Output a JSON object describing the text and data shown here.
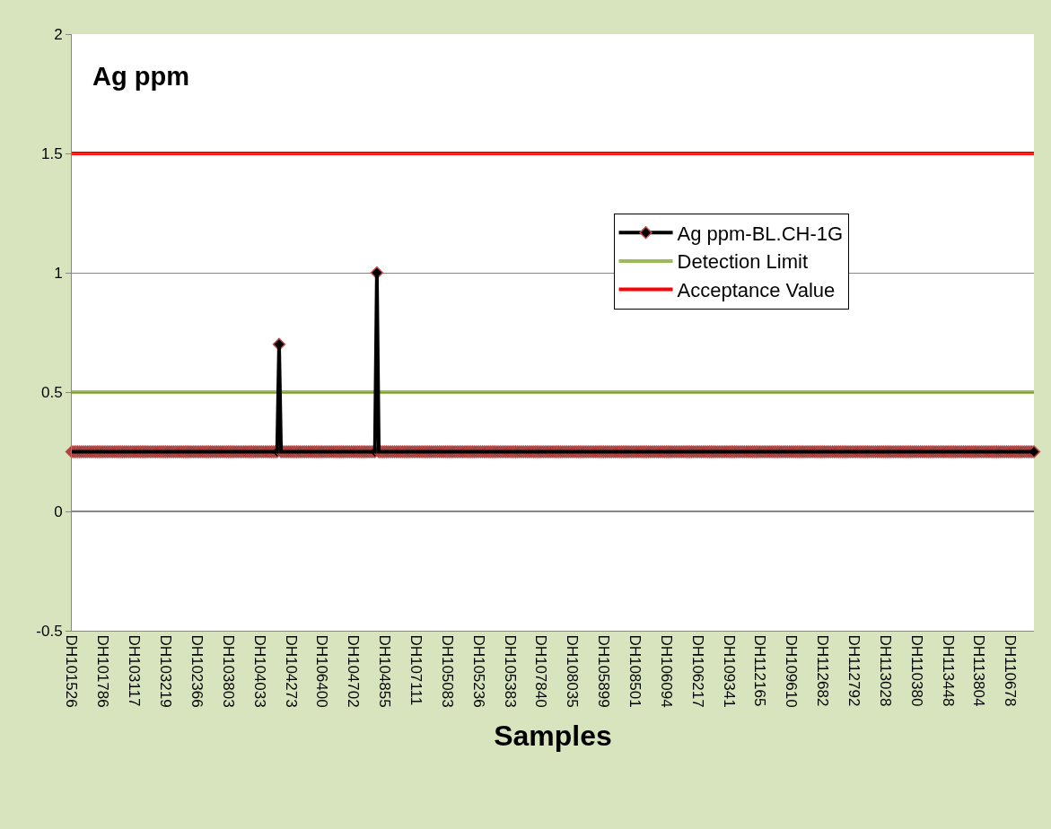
{
  "chart_data": {
    "type": "line",
    "title": "Ag ppm",
    "xlabel": "Samples",
    "categories": [
      "DH101526",
      null,
      null,
      null,
      null,
      null,
      null,
      null,
      null,
      null,
      null,
      null,
      null,
      null,
      null,
      null,
      "DH101786",
      null,
      null,
      null,
      null,
      null,
      null,
      null,
      null,
      null,
      null,
      null,
      null,
      null,
      null,
      null,
      "DH103117",
      null,
      null,
      null,
      null,
      null,
      null,
      null,
      null,
      null,
      null,
      null,
      null,
      null,
      null,
      null,
      "DH103219",
      null,
      null,
      null,
      null,
      null,
      null,
      null,
      null,
      null,
      null,
      null,
      null,
      null,
      null,
      null,
      "DH102366",
      null,
      null,
      null,
      null,
      null,
      null,
      null,
      null,
      null,
      null,
      null,
      null,
      null,
      null,
      null,
      "DH103803",
      null,
      null,
      null,
      null,
      null,
      null,
      null,
      null,
      null,
      null,
      null,
      null,
      null,
      null,
      null,
      "DH104033",
      null,
      null,
      null,
      null,
      null,
      null,
      null,
      null,
      null,
      null,
      null,
      null,
      null,
      null,
      null,
      "DH104273",
      null,
      null,
      null,
      null,
      null,
      null,
      null,
      null,
      null,
      null,
      null,
      null,
      null,
      null,
      null,
      "DH106400",
      null,
      null,
      null,
      null,
      null,
      null,
      null,
      null,
      null,
      null,
      null,
      null,
      null,
      null,
      null,
      "DH104702",
      null,
      null,
      null,
      null,
      null,
      null,
      null,
      null,
      null,
      null,
      null,
      null,
      null,
      null,
      null,
      "DH104855",
      null,
      null,
      null,
      null,
      null,
      null,
      null,
      null,
      null,
      null,
      null,
      null,
      null,
      null,
      null,
      "DH107111",
      null,
      null,
      null,
      null,
      null,
      null,
      null,
      null,
      null,
      null,
      null,
      null,
      null,
      null,
      null,
      "DH105083",
      null,
      null,
      null,
      null,
      null,
      null,
      null,
      null,
      null,
      null,
      null,
      null,
      null,
      null,
      null,
      "DH105236",
      null,
      null,
      null,
      null,
      null,
      null,
      null,
      null,
      null,
      null,
      null,
      null,
      null,
      null,
      null,
      "DH105383",
      null,
      null,
      null,
      null,
      null,
      null,
      null,
      null,
      null,
      null,
      null,
      null,
      null,
      null,
      null,
      "DH107840",
      null,
      null,
      null,
      null,
      null,
      null,
      null,
      null,
      null,
      null,
      null,
      null,
      null,
      null,
      null,
      "DH108035",
      null,
      null,
      null,
      null,
      null,
      null,
      null,
      null,
      null,
      null,
      null,
      null,
      null,
      null,
      null,
      "DH105899",
      null,
      null,
      null,
      null,
      null,
      null,
      null,
      null,
      null,
      null,
      null,
      null,
      null,
      null,
      null,
      "DH108501",
      null,
      null,
      null,
      null,
      null,
      null,
      null,
      null,
      null,
      null,
      null,
      null,
      null,
      null,
      null,
      "DH106094",
      null,
      null,
      null,
      null,
      null,
      null,
      null,
      null,
      null,
      null,
      null,
      null,
      null,
      null,
      null,
      "DH106217",
      null,
      null,
      null,
      null,
      null,
      null,
      null,
      null,
      null,
      null,
      null,
      null,
      null,
      null,
      null,
      "DH109341",
      null,
      null,
      null,
      null,
      null,
      null,
      null,
      null,
      null,
      null,
      null,
      null,
      null,
      null,
      null,
      "DH112165",
      null,
      null,
      null,
      null,
      null,
      null,
      null,
      null,
      null,
      null,
      null,
      null,
      null,
      null,
      null,
      "DH109610",
      null,
      null,
      null,
      null,
      null,
      null,
      null,
      null,
      null,
      null,
      null,
      null,
      null,
      null,
      null,
      "DH112682",
      null,
      null,
      null,
      null,
      null,
      null,
      null,
      null,
      null,
      null,
      null,
      null,
      null,
      null,
      null,
      "DH112792",
      null,
      null,
      null,
      null,
      null,
      null,
      null,
      null,
      null,
      null,
      null,
      null,
      null,
      null,
      null,
      "DH113028",
      null,
      null,
      null,
      null,
      null,
      null,
      null,
      null,
      null,
      null,
      null,
      null,
      null,
      null,
      null,
      "DH110380",
      null,
      null,
      null,
      null,
      null,
      null,
      null,
      null,
      null,
      null,
      null,
      null,
      null,
      null,
      null,
      "DH113448",
      null,
      null,
      null,
      null,
      null,
      null,
      null,
      null,
      null,
      null,
      null,
      null,
      null,
      null,
      null,
      "DH113804",
      null,
      null,
      null,
      null,
      null,
      null,
      null,
      null,
      null,
      null,
      null,
      null,
      null,
      null,
      null,
      "DH110678",
      null,
      null,
      null,
      null,
      null,
      null,
      null,
      null,
      null,
      null,
      null,
      null
    ],
    "series": [
      {
        "name": "Ag ppm-BL.CH-1G",
        "color": "#000000",
        "values": [
          0.25,
          0.25,
          0.25,
          0.25,
          0.25,
          0.25,
          0.25,
          0.25,
          0.25,
          0.25,
          0.25,
          0.25,
          0.25,
          0.25,
          0.25,
          0.25,
          0.25,
          0.25,
          0.25,
          0.25,
          0.25,
          0.25,
          0.25,
          0.25,
          0.25,
          0.25,
          0.25,
          0.25,
          0.25,
          0.25,
          0.25,
          0.25,
          0.25,
          0.25,
          0.25,
          0.25,
          0.25,
          0.25,
          0.25,
          0.25,
          0.25,
          0.25,
          0.25,
          0.25,
          0.25,
          0.25,
          0.25,
          0.25,
          0.25,
          0.25,
          0.25,
          0.25,
          0.25,
          0.25,
          0.25,
          0.25,
          0.25,
          0.25,
          0.25,
          0.25,
          0.25,
          0.25,
          0.25,
          0.25,
          0.25,
          0.25,
          0.25,
          0.25,
          0.25,
          0.25,
          0.25,
          0.25,
          0.25,
          0.25,
          0.25,
          0.25,
          0.25,
          0.25,
          0.25,
          0.25,
          0.25,
          0.25,
          0.25,
          0.25,
          0.25,
          0.25,
          0.25,
          0.25,
          0.25,
          0.25,
          0.25,
          0.25,
          0.25,
          0.25,
          0.25,
          0.25,
          0.25,
          0.25,
          0.25,
          0.25,
          0.25,
          0.25,
          0.25,
          0.25,
          0.25,
          0.25,
          0.7,
          0.25,
          0.25,
          0.25,
          0.25,
          0.25,
          0.25,
          0.25,
          0.25,
          0.25,
          0.25,
          0.25,
          0.25,
          0.25,
          0.25,
          0.25,
          0.25,
          0.25,
          0.25,
          0.25,
          0.25,
          0.25,
          0.25,
          0.25,
          0.25,
          0.25,
          0.25,
          0.25,
          0.25,
          0.25,
          0.25,
          0.25,
          0.25,
          0.25,
          0.25,
          0.25,
          0.25,
          0.25,
          0.25,
          0.25,
          0.25,
          0.25,
          0.25,
          0.25,
          0.25,
          0.25,
          0.25,
          0.25,
          0.25,
          0.25,
          1,
          0.25,
          0.25,
          0.25,
          0.25,
          0.25,
          0.25,
          0.25,
          0.25,
          0.25,
          0.25,
          0.25,
          0.25,
          0.25,
          0.25,
          0.25,
          0.25,
          0.25,
          0.25,
          0.25,
          0.25,
          0.25,
          0.25,
          0.25,
          0.25,
          0.25,
          0.25,
          0.25,
          0.25,
          0.25,
          0.25,
          0.25,
          0.25,
          0.25,
          0.25,
          0.25,
          0.25,
          0.25,
          0.25,
          0.25,
          0.25,
          0.25,
          0.25,
          0.25,
          0.25,
          0.25,
          0.25,
          0.25,
          0.25,
          0.25,
          0.25,
          0.25,
          0.25,
          0.25,
          0.25,
          0.25,
          0.25,
          0.25,
          0.25,
          0.25,
          0.25,
          0.25,
          0.25,
          0.25,
          0.25,
          0.25,
          0.25,
          0.25,
          0.25,
          0.25,
          0.25,
          0.25,
          0.25,
          0.25,
          0.25,
          0.25,
          0.25,
          0.25,
          0.25,
          0.25,
          0.25,
          0.25,
          0.25,
          0.25,
          0.25,
          0.25,
          0.25,
          0.25,
          0.25,
          0.25,
          0.25,
          0.25,
          0.25,
          0.25,
          0.25,
          0.25,
          0.25,
          0.25,
          0.25,
          0.25,
          0.25,
          0.25,
          0.25,
          0.25,
          0.25,
          0.25,
          0.25,
          0.25,
          0.25,
          0.25,
          0.25,
          0.25,
          0.25,
          0.25,
          0.25,
          0.25,
          0.25,
          0.25,
          0.25,
          0.25,
          0.25,
          0.25,
          0.25,
          0.25,
          0.25,
          0.25,
          0.25,
          0.25,
          0.25,
          0.25,
          0.25,
          0.25,
          0.25,
          0.25,
          0.25,
          0.25,
          0.25,
          0.25,
          0.25,
          0.25,
          0.25,
          0.25,
          0.25,
          0.25,
          0.25,
          0.25,
          0.25,
          0.25,
          0.25,
          0.25,
          0.25,
          0.25,
          0.25,
          0.25,
          0.25,
          0.25,
          0.25,
          0.25,
          0.25,
          0.25,
          0.25,
          0.25,
          0.25,
          0.25,
          0.25,
          0.25,
          0.25,
          0.25,
          0.25,
          0.25,
          0.25,
          0.25,
          0.25,
          0.25,
          0.25,
          0.25,
          0.25,
          0.25,
          0.25,
          0.25,
          0.25,
          0.25,
          0.25,
          0.25,
          0.25,
          0.25,
          0.25,
          0.25,
          0.25,
          0.25,
          0.25,
          0.25,
          0.25,
          0.25,
          0.25,
          0.25,
          0.25,
          0.25,
          0.25,
          0.25,
          0.25,
          0.25,
          0.25,
          0.25,
          0.25,
          0.25,
          0.25,
          0.25,
          0.25,
          0.25,
          0.25,
          0.25,
          0.25,
          0.25,
          0.25,
          0.25,
          0.25,
          0.25,
          0.25,
          0.25,
          0.25,
          0.25,
          0.25,
          0.25,
          0.25,
          0.25,
          0.25,
          0.25,
          0.25,
          0.25,
          0.25,
          0.25,
          0.25,
          0.25,
          0.25,
          0.25,
          0.25,
          0.25,
          0.25,
          0.25,
          0.25,
          0.25,
          0.25,
          0.25,
          0.25,
          0.25,
          0.25,
          0.25,
          0.25,
          0.25,
          0.25,
          0.25,
          0.25,
          0.25,
          0.25,
          0.25,
          0.25,
          0.25,
          0.25,
          0.25,
          0.25,
          0.25,
          0.25,
          0.25,
          0.25,
          0.25,
          0.25,
          0.25,
          0.25,
          0.25,
          0.25,
          0.25,
          0.25,
          0.25,
          0.25,
          0.25,
          0.25,
          0.25,
          0.25,
          0.25,
          0.25,
          0.25,
          0.25,
          0.25,
          0.25,
          0.25,
          0.25,
          0.25,
          0.25,
          0.25,
          0.25,
          0.25,
          0.25,
          0.25,
          0.25,
          0.25,
          0.25,
          0.25,
          0.25,
          0.25,
          0.25,
          0.25,
          0.25,
          0.25,
          0.25,
          0.25,
          0.25,
          0.25,
          0.25,
          0.25,
          0.25,
          0.25,
          0.25,
          0.25,
          0.25,
          0.25,
          0.25,
          0.25,
          0.25,
          0.25,
          0.25,
          0.25,
          0.25,
          0.25,
          0.25,
          0.25,
          0.25,
          0.25,
          0.25,
          0.25,
          0.25,
          0.25,
          0.25,
          0.25,
          0.25,
          0.25,
          0.25
        ]
      }
    ],
    "ref_lines": [
      {
        "axis": "y",
        "value": 0.5,
        "label": "Detection Limit",
        "color": "#9bbb59"
      },
      {
        "axis": "y",
        "value": 1.5,
        "label": "Acceptance Value",
        "color": "#ff0000"
      }
    ],
    "ylim": [
      -0.5,
      2
    ],
    "yticks": [
      -0.5,
      0,
      0.5,
      1,
      1.5,
      2
    ],
    "grid": "y",
    "legend": "right",
    "marker": "diamond",
    "line_style": "solid"
  }
}
